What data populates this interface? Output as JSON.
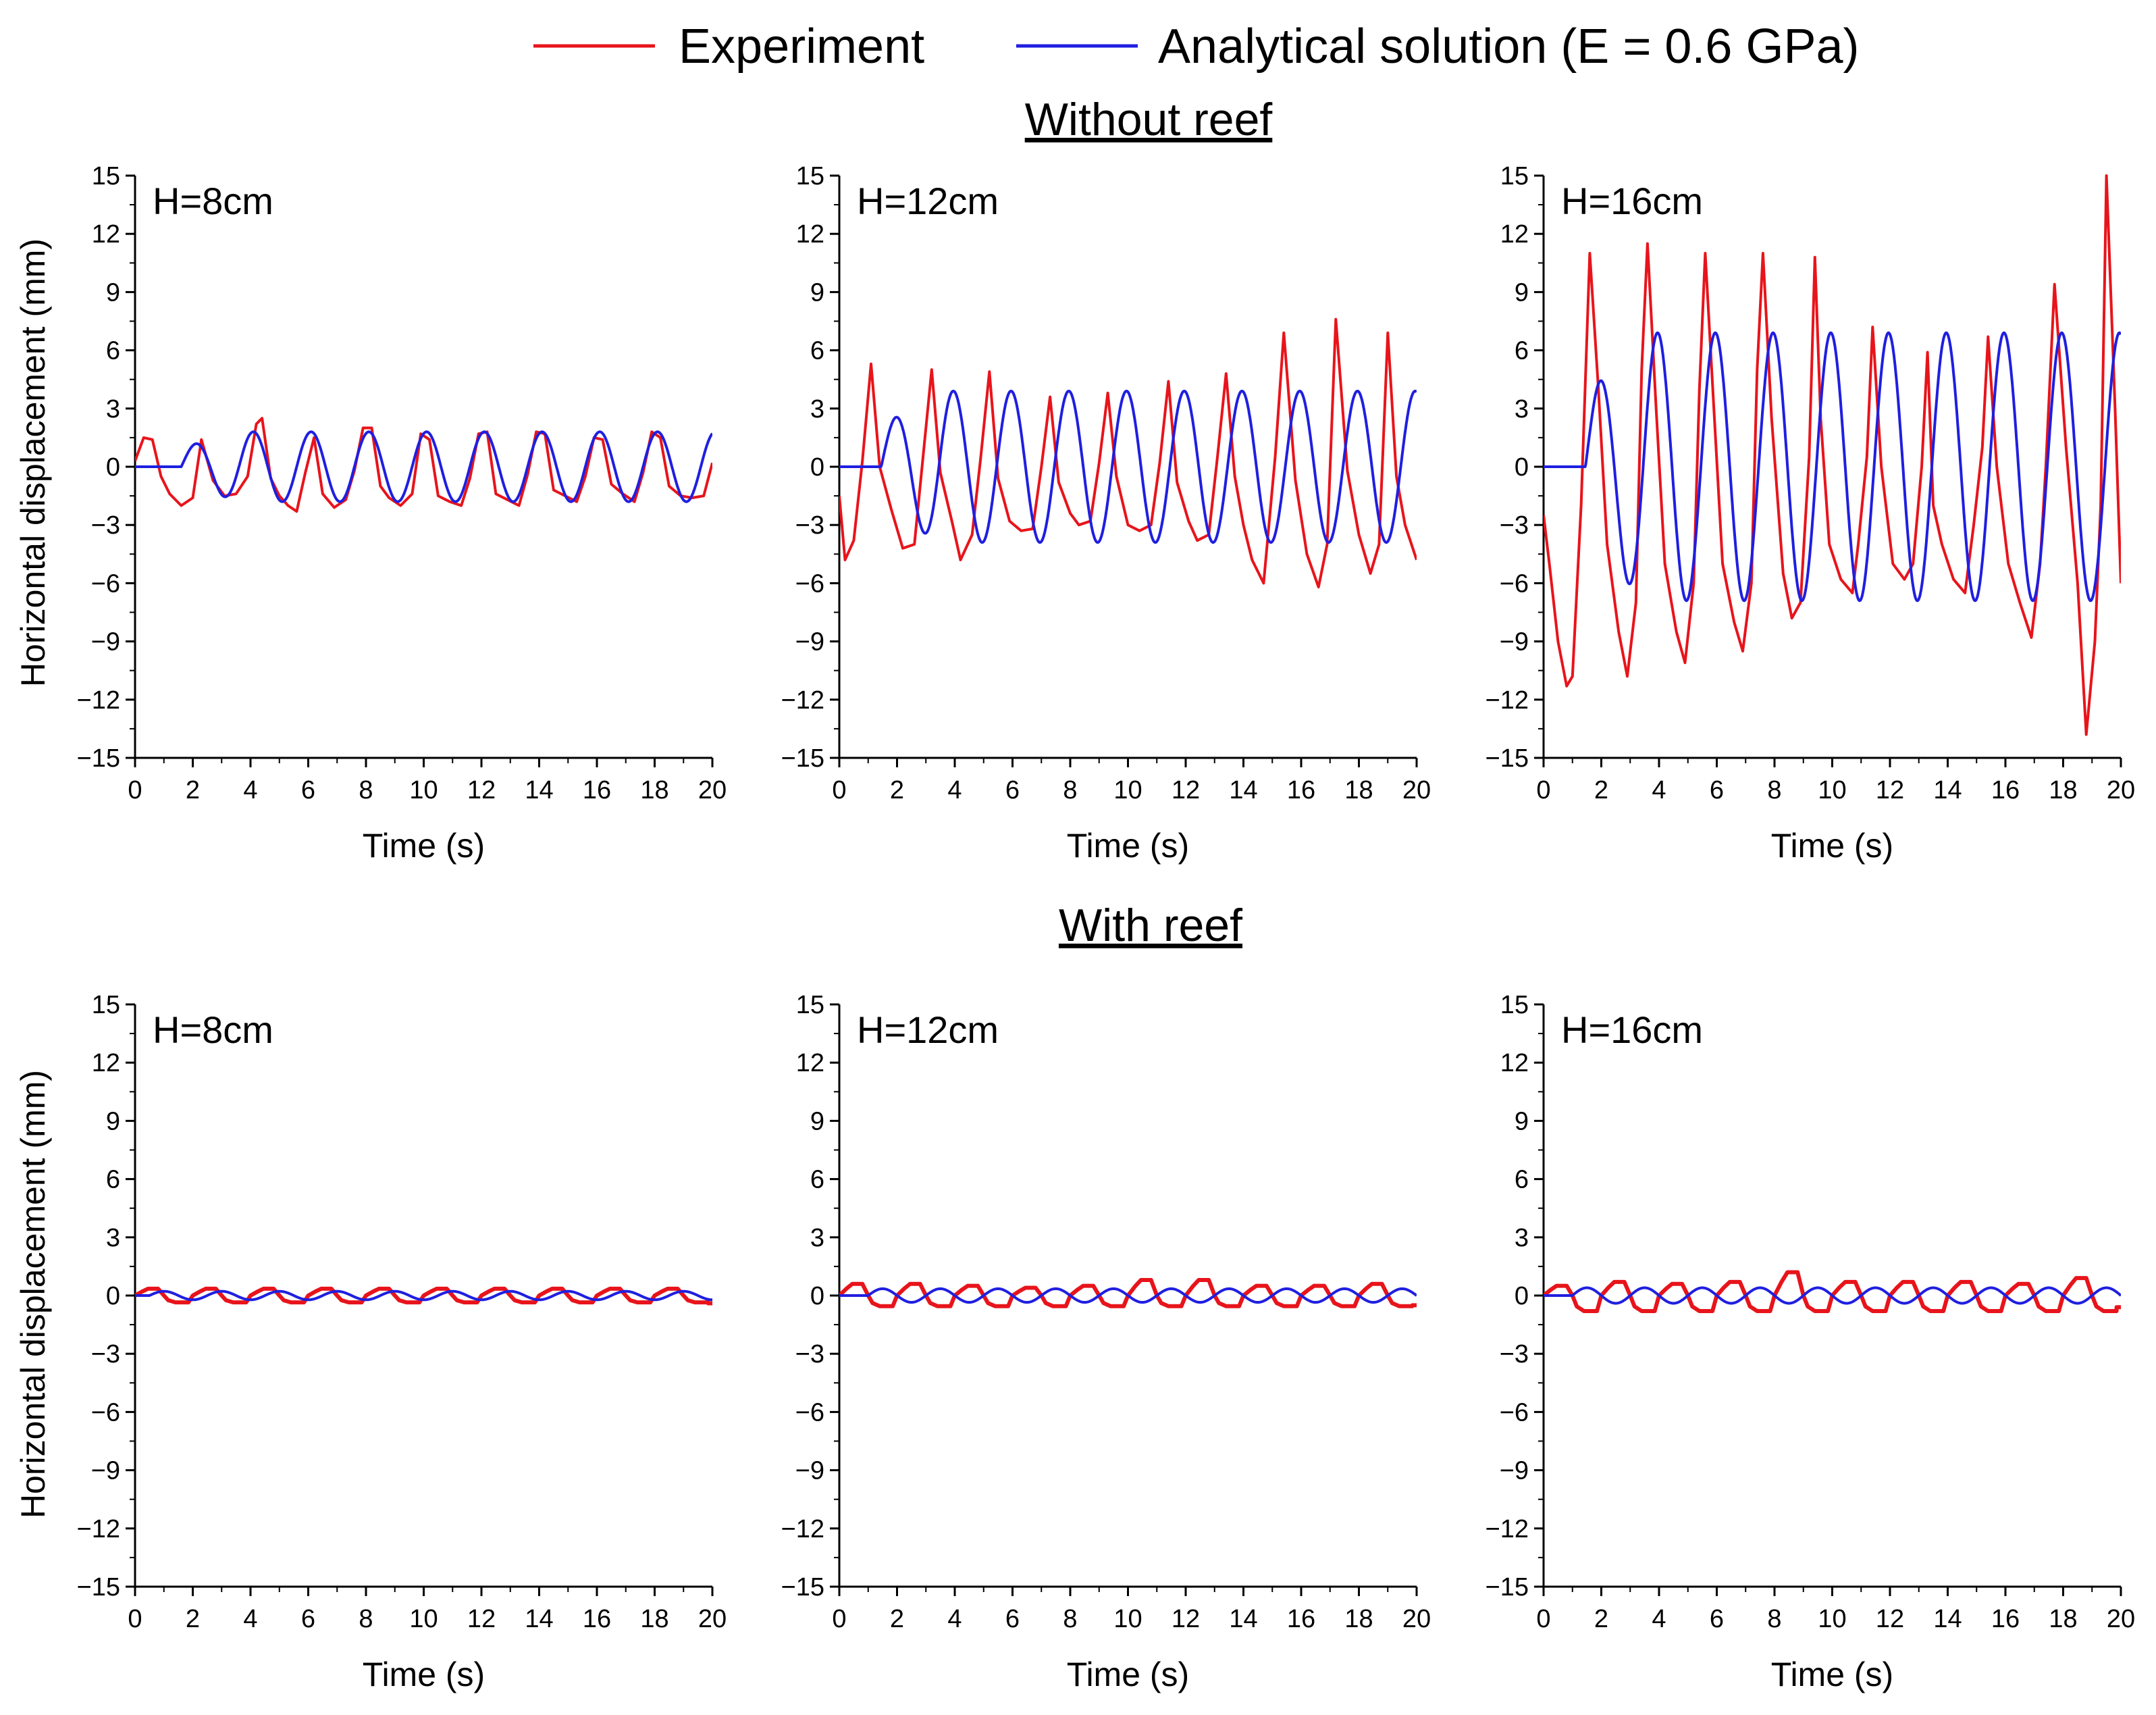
{
  "legend": {
    "experiment_label": "Experiment",
    "analytical_label": "Analytical solution (E = 0.6 GPa)",
    "experiment_color": "#e8141b",
    "analytical_color": "#1f1fe0"
  },
  "sections": {
    "top_title": "Without reef",
    "bottom_title": "With reef"
  },
  "axes": {
    "xlabel": "Time (s)",
    "ylabel": "Horizontal displacement (mm)",
    "xlim": [
      0,
      20
    ],
    "ylim": [
      -15,
      15
    ],
    "xticks": [
      0,
      2,
      4,
      6,
      8,
      10,
      12,
      14,
      16,
      18,
      20
    ],
    "yticks": [
      15,
      12,
      9,
      6,
      3,
      0,
      -3,
      -6,
      -9,
      -12,
      -15
    ],
    "xtick_labels": [
      "0",
      "2",
      "4",
      "6",
      "8",
      "10",
      "12",
      "14",
      "16",
      "18",
      "20"
    ],
    "ytick_labels": [
      "15",
      "12",
      "9",
      "6",
      "3",
      "0",
      "−3",
      "−6",
      "−9",
      "−12",
      "−15"
    ]
  },
  "chart_data": [
    {
      "type": "line",
      "group": "Without reef",
      "title": "H=8cm",
      "xlabel": "Time (s)",
      "ylabel": "Horizontal displacement (mm)",
      "xlim": [
        0,
        20
      ],
      "ylim": [
        -15,
        15
      ],
      "series": [
        {
          "name": "Experiment",
          "x": [
            0,
            0.3,
            0.6,
            0.9,
            1.2,
            1.6,
            2.0,
            2.3,
            2.7,
            3.1,
            3.5,
            3.9,
            4.2,
            4.4,
            4.7,
            5.0,
            5.3,
            5.6,
            5.9,
            6.2,
            6.5,
            6.9,
            7.3,
            7.6,
            7.9,
            8.2,
            8.5,
            8.8,
            9.2,
            9.6,
            9.9,
            10.2,
            10.5,
            10.9,
            11.3,
            11.6,
            11.9,
            12.2,
            12.5,
            12.9,
            13.3,
            13.6,
            13.9,
            14.2,
            14.5,
            14.9,
            15.3,
            15.6,
            15.9,
            16.2,
            16.5,
            16.9,
            17.3,
            17.6,
            17.9,
            18.2,
            18.5,
            18.9,
            19.3,
            19.7,
            20.0
          ],
          "y": [
            0.3,
            1.5,
            1.4,
            -0.5,
            -1.4,
            -2.0,
            -1.6,
            1.4,
            -0.7,
            -1.5,
            -1.4,
            -0.5,
            2.2,
            2.5,
            -0.6,
            -1.5,
            -2.0,
            -2.3,
            -0.3,
            1.5,
            -1.4,
            -2.1,
            -1.7,
            -0.2,
            2.0,
            2.0,
            -1.0,
            -1.6,
            -2.0,
            -1.4,
            1.7,
            1.4,
            -1.5,
            -1.8,
            -2.0,
            -0.6,
            1.7,
            1.8,
            -1.4,
            -1.7,
            -2.0,
            -0.4,
            1.8,
            1.7,
            -1.2,
            -1.5,
            -1.8,
            -0.5,
            1.5,
            1.4,
            -0.9,
            -1.4,
            -1.8,
            -0.3,
            1.8,
            1.5,
            -1.0,
            -1.5,
            -1.6,
            -1.5,
            0.2
          ]
        },
        {
          "name": "Analytical solution (E = 0.6 GPa)",
          "model": "sine",
          "start": 1.6,
          "period": 2.0,
          "amplitude": 1.8,
          "ramp_end": 3.8,
          "initial_amplitude": 1.0
        }
      ]
    },
    {
      "type": "line",
      "group": "Without reef",
      "title": "H=12cm",
      "xlabel": "Time (s)",
      "ylabel": "Horizontal displacement (mm)",
      "xlim": [
        0,
        20
      ],
      "ylim": [
        -15,
        15
      ],
      "series": [
        {
          "name": "Experiment",
          "x": [
            0,
            0.2,
            0.5,
            0.8,
            1.1,
            1.4,
            1.8,
            2.2,
            2.6,
            2.9,
            3.2,
            3.5,
            3.9,
            4.2,
            4.6,
            4.9,
            5.2,
            5.5,
            5.9,
            6.3,
            6.7,
            7.0,
            7.3,
            7.6,
            8.0,
            8.3,
            8.7,
            9.0,
            9.3,
            9.6,
            10.0,
            10.4,
            10.8,
            11.1,
            11.4,
            11.7,
            12.1,
            12.4,
            12.8,
            13.1,
            13.4,
            13.7,
            14.0,
            14.3,
            14.7,
            15.1,
            15.4,
            15.8,
            16.2,
            16.6,
            16.9,
            17.2,
            17.6,
            18.0,
            18.4,
            18.7,
            19.0,
            19.3,
            19.6,
            20.0
          ],
          "y": [
            -1.5,
            -4.8,
            -3.8,
            0.3,
            5.3,
            0.0,
            -2.2,
            -4.2,
            -4.0,
            0.5,
            5.0,
            -0.3,
            -2.8,
            -4.8,
            -3.5,
            0.5,
            4.9,
            -0.6,
            -2.8,
            -3.3,
            -3.2,
            0.0,
            3.6,
            -0.8,
            -2.4,
            -3.0,
            -2.8,
            0.2,
            3.8,
            -0.5,
            -3.0,
            -3.3,
            -3.0,
            0.2,
            4.4,
            -0.8,
            -2.8,
            -3.8,
            -3.5,
            0.5,
            4.8,
            -0.5,
            -3.0,
            -4.8,
            -6.0,
            0.5,
            6.9,
            -0.7,
            -4.5,
            -6.2,
            -4.0,
            7.6,
            -0.2,
            -3.5,
            -5.5,
            -4.0,
            6.9,
            -0.5,
            -3.0,
            -4.8
          ]
        },
        {
          "name": "Analytical solution (E = 0.6 GPa)",
          "model": "sine",
          "start": 1.45,
          "period": 2.0,
          "amplitude": 3.9,
          "ramp_end": 3.5,
          "initial_amplitude": 2.1
        }
      ]
    },
    {
      "type": "line",
      "group": "Without reef",
      "title": "H=16cm",
      "xlabel": "Time (s)",
      "ylabel": "Horizontal displacement (mm)",
      "xlim": [
        0,
        20
      ],
      "ylim": [
        -15,
        15
      ],
      "series": [
        {
          "name": "Experiment",
          "x": [
            0,
            0.2,
            0.5,
            0.8,
            1.0,
            1.3,
            1.6,
            1.9,
            2.2,
            2.6,
            2.9,
            3.2,
            3.4,
            3.6,
            3.9,
            4.2,
            4.6,
            4.9,
            5.2,
            5.4,
            5.6,
            5.9,
            6.2,
            6.6,
            6.9,
            7.2,
            7.4,
            7.6,
            7.9,
            8.3,
            8.6,
            8.9,
            9.2,
            9.4,
            9.6,
            9.9,
            10.3,
            10.7,
            10.9,
            11.2,
            11.4,
            11.7,
            12.1,
            12.5,
            12.8,
            13.1,
            13.3,
            13.5,
            13.8,
            14.2,
            14.6,
            14.9,
            15.2,
            15.4,
            15.7,
            16.1,
            16.5,
            16.9,
            17.2,
            17.4,
            17.7,
            18.1,
            18.5,
            18.8,
            19.1,
            19.3,
            19.5,
            19.8,
            20.0
          ],
          "y": [
            -2.5,
            -5.0,
            -9.0,
            -11.3,
            -10.8,
            -2.0,
            11.0,
            4.0,
            -4.0,
            -8.5,
            -10.8,
            -7.0,
            5.0,
            11.5,
            3.0,
            -5.0,
            -8.5,
            -10.1,
            -6.0,
            4.0,
            11.0,
            3.0,
            -5.0,
            -8.0,
            -9.5,
            -6.0,
            5.0,
            11.0,
            2.5,
            -5.5,
            -7.8,
            -7.0,
            0.5,
            10.8,
            2.5,
            -4.0,
            -5.8,
            -6.5,
            -4.0,
            0.5,
            7.2,
            0.0,
            -5.0,
            -5.8,
            -5.0,
            0.0,
            5.9,
            -2.0,
            -4.0,
            -5.8,
            -6.5,
            -3.0,
            1.0,
            6.7,
            0.0,
            -5.0,
            -7.0,
            -8.8,
            -5.0,
            0.0,
            9.4,
            1.0,
            -6.0,
            -13.8,
            -9.0,
            -2.0,
            15.0,
            3.0,
            -6.0
          ]
        },
        {
          "name": "Analytical solution (E = 0.6 GPa)",
          "model": "sine",
          "start": 1.45,
          "period": 2.0,
          "amplitude": 6.9,
          "ramp_end": 3.5,
          "initial_amplitude": 3.6
        }
      ]
    },
    {
      "type": "line",
      "group": "With reef",
      "title": "H=8cm",
      "xlabel": "Time (s)",
      "ylabel": "Horizontal displacement (mm)",
      "xlim": [
        0,
        20
      ],
      "ylim": [
        -15,
        15
      ],
      "series": [
        {
          "name": "Experiment",
          "model": "plateau",
          "start": 0.0,
          "period": 2.0,
          "high": 0.35,
          "low": -0.35,
          "end_value": -0.4
        },
        {
          "name": "Analytical solution (E = 0.6 GPa)",
          "model": "sine",
          "start": 0.5,
          "period": 2.0,
          "amplitude": 0.22,
          "ramp_end": 0.5,
          "initial_amplitude": 0.22
        }
      ]
    },
    {
      "type": "line",
      "group": "With reef",
      "title": "H=12cm",
      "xlabel": "Time (s)",
      "ylabel": "Horizontal displacement (mm)",
      "xlim": [
        0,
        20
      ],
      "ylim": [
        -15,
        15
      ],
      "series": [
        {
          "name": "Experiment",
          "model": "plateau",
          "start": 0.0,
          "period": 2.0,
          "high": 0.55,
          "low": -0.55,
          "end_value": -0.5,
          "peaks": [
            0.6,
            0.6,
            0.5,
            0.4,
            0.5,
            0.8,
            0.8,
            0.5,
            0.5,
            0.6
          ]
        },
        {
          "name": "Analytical solution (E = 0.6 GPa)",
          "model": "sine",
          "start": 1.0,
          "period": 2.0,
          "amplitude": 0.35,
          "ramp_end": 1.0,
          "initial_amplitude": 0.35
        }
      ]
    },
    {
      "type": "line",
      "group": "With reef",
      "title": "H=16cm",
      "xlabel": "Time (s)",
      "ylabel": "Horizontal displacement (mm)",
      "xlim": [
        0,
        20
      ],
      "ylim": [
        -15,
        15
      ],
      "series": [
        {
          "name": "Experiment",
          "model": "plateau",
          "start": 0.0,
          "period": 2.0,
          "high": 0.7,
          "low": -0.8,
          "end_value": -0.6,
          "peaks": [
            0.5,
            0.7,
            0.6,
            0.7,
            1.2,
            0.7,
            0.7,
            0.7,
            0.6,
            0.9
          ]
        },
        {
          "name": "Analytical solution (E = 0.6 GPa)",
          "model": "sine",
          "start": 1.0,
          "period": 2.0,
          "amplitude": 0.4,
          "ramp_end": 1.0,
          "initial_amplitude": 0.4
        }
      ]
    }
  ]
}
